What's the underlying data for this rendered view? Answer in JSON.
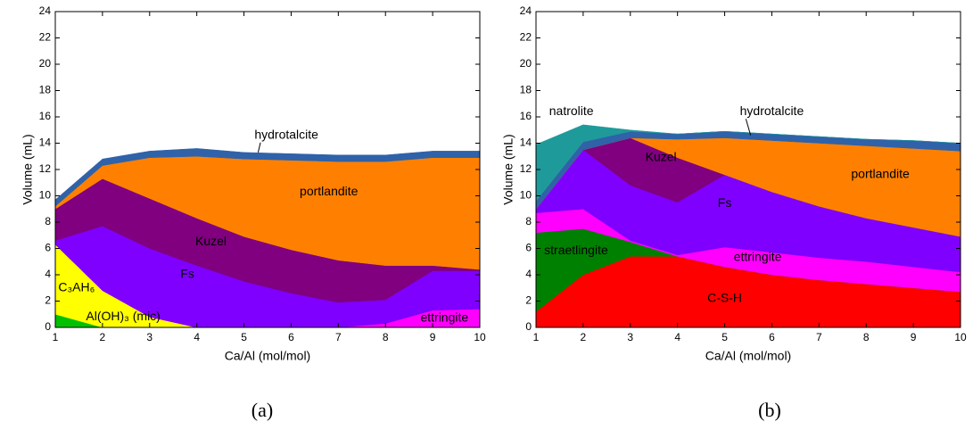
{
  "chart_data": [
    {
      "type": "stacked_area",
      "caption": "(a)",
      "xlabel": "Ca/Al (mol/mol)",
      "ylabel": "Volume (mL)",
      "x": [
        1,
        2,
        3,
        4,
        5,
        6,
        7,
        8,
        9,
        10
      ],
      "xlim": [
        1,
        10
      ],
      "xticks": [
        1,
        2,
        3,
        4,
        5,
        6,
        7,
        8,
        9,
        10
      ],
      "ylim": [
        0,
        24
      ],
      "yticks": [
        0,
        2,
        4,
        6,
        8,
        10,
        12,
        14,
        16,
        18,
        20,
        22,
        24
      ],
      "series": [
        {
          "name": "Al(OH)₃ (mic)",
          "color": "#00c000",
          "values": [
            1.0,
            0,
            0,
            0,
            0,
            0,
            0,
            0,
            0,
            0
          ]
        },
        {
          "name": "C₃AH₆",
          "color": "#ffff00",
          "values": [
            5.3,
            2.8,
            0.8,
            0,
            0,
            0,
            0,
            0,
            0,
            0
          ]
        },
        {
          "name": "ettringite",
          "color": "#ff00ff",
          "values": [
            0,
            0,
            0,
            0,
            0,
            0,
            0,
            0.3,
            1.3,
            1.4
          ]
        },
        {
          "name": "Fs",
          "color": "#8000ff",
          "values": [
            0.3,
            4.9,
            5.2,
            4.7,
            3.5,
            2.6,
            1.9,
            1.8,
            3.0,
            2.9
          ]
        },
        {
          "name": "Kuzel",
          "color": "#800080",
          "values": [
            2.4,
            3.6,
            3.8,
            3.6,
            3.4,
            3.3,
            3.2,
            2.6,
            0.4,
            0.1
          ]
        },
        {
          "name": "portlandite",
          "color": "#ff8000",
          "values": [
            0.2,
            1.0,
            3.1,
            4.7,
            5.9,
            6.8,
            7.5,
            7.9,
            8.2,
            8.5
          ]
        },
        {
          "name": "hydrotalcite",
          "color": "#2f62a8",
          "values": [
            0.5,
            0.5,
            0.5,
            0.6,
            0.5,
            0.5,
            0.5,
            0.5,
            0.5,
            0.5
          ]
        }
      ]
    },
    {
      "type": "stacked_area",
      "caption": "(b)",
      "xlabel": "Ca/Al (mol/mol)",
      "ylabel": "Volume (mL)",
      "x": [
        1,
        2,
        3,
        4,
        5,
        6,
        7,
        8,
        9,
        10
      ],
      "xlim": [
        1,
        10
      ],
      "xticks": [
        1,
        2,
        3,
        4,
        5,
        6,
        7,
        8,
        9,
        10
      ],
      "ylim": [
        0,
        24
      ],
      "yticks": [
        0,
        2,
        4,
        6,
        8,
        10,
        12,
        14,
        16,
        18,
        20,
        22,
        24
      ],
      "series": [
        {
          "name": "C-S-H",
          "color": "#ff0000",
          "values": [
            1.2,
            4.0,
            5.4,
            5.4,
            4.6,
            4.0,
            3.6,
            3.3,
            3.0,
            2.7
          ]
        },
        {
          "name": "straetlingite",
          "color": "#008000",
          "values": [
            6.0,
            3.5,
            1.1,
            0,
            0,
            0,
            0,
            0,
            0,
            0
          ]
        },
        {
          "name": "ettringite",
          "color": "#ff00ff",
          "values": [
            1.5,
            1.5,
            0.1,
            0.1,
            1.5,
            1.7,
            1.7,
            1.7,
            1.6,
            1.5
          ]
        },
        {
          "name": "Fs",
          "color": "#8000ff",
          "values": [
            0.3,
            4.5,
            4.2,
            4.0,
            5.5,
            4.6,
            3.9,
            3.3,
            3.0,
            2.7
          ]
        },
        {
          "name": "Kuzel",
          "color": "#800080",
          "values": [
            0,
            0,
            3.6,
            3.4,
            0,
            0,
            0,
            0,
            0,
            0
          ]
        },
        {
          "name": "portlandite",
          "color": "#ff8000",
          "values": [
            0,
            0,
            0,
            1.4,
            2.8,
            3.9,
            4.8,
            5.5,
            6.0,
            6.5
          ]
        },
        {
          "name": "hydrotalcite",
          "color": "#2f62a8",
          "values": [
            0.6,
            0.6,
            0.5,
            0.4,
            0.5,
            0.5,
            0.5,
            0.5,
            0.6,
            0.6
          ]
        },
        {
          "name": "natrolite",
          "color": "#1f9a9a",
          "values": [
            4.3,
            1.3,
            0.1,
            0,
            0,
            0,
            0,
            0,
            0,
            0
          ]
        }
      ]
    }
  ]
}
